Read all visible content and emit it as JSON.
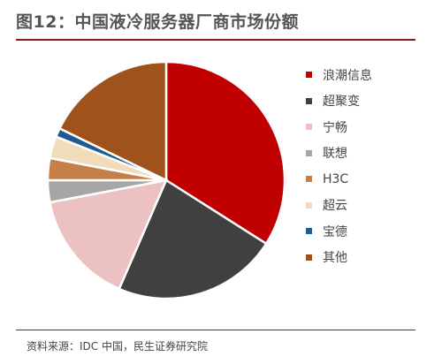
{
  "title": "图12：中国液冷服务器厂商市场份额",
  "source": "资料来源：IDC 中国，民生证券研究院",
  "chart_data": {
    "type": "pie",
    "title": "图12：中国液冷服务器厂商市场份额",
    "legend_position": "right",
    "slices": [
      {
        "label": "浪潮信息",
        "value": 34.0,
        "color": "#c00000"
      },
      {
        "label": "超聚变",
        "value": 22.5,
        "color": "#404040"
      },
      {
        "label": "宁畅",
        "value": 15.5,
        "color": "#ebc1c1"
      },
      {
        "label": "联想",
        "value": 3.0,
        "color": "#a6a6a6"
      },
      {
        "label": "H3C",
        "value": 3.0,
        "color": "#c5804a"
      },
      {
        "label": "超云",
        "value": 3.0,
        "color": "#f0dcbb"
      },
      {
        "label": "宝德",
        "value": 1.2,
        "color": "#1f5b8f"
      },
      {
        "label": "其他",
        "value": 17.8,
        "color": "#a0521c"
      }
    ]
  }
}
